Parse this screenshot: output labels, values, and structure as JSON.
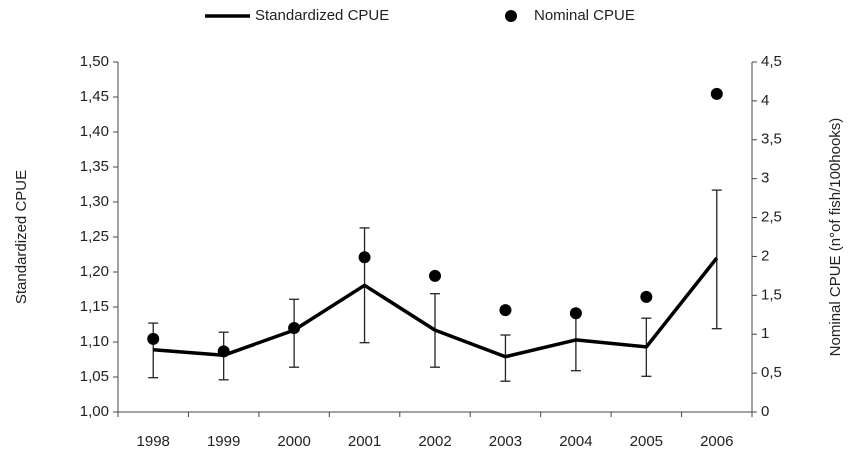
{
  "chart_data": {
    "type": "line",
    "categories": [
      "1998",
      "1999",
      "2000",
      "2001",
      "2002",
      "2003",
      "2004",
      "2005",
      "2006"
    ],
    "series": [
      {
        "name": "Standardized CPUE",
        "color": "#000000",
        "values": [
          1.089,
          1.081,
          1.117,
          1.181,
          1.117,
          1.079,
          1.103,
          1.093,
          1.22
        ],
        "lower": [
          1.049,
          1.046,
          1.064,
          1.099,
          1.064,
          1.044,
          1.059,
          1.051,
          1.119
        ],
        "upper": [
          1.127,
          1.114,
          1.161,
          1.263,
          1.169,
          1.11,
          1.144,
          1.134,
          1.317
        ]
      },
      {
        "name": "Nominal CPUE",
        "color": "#000000",
        "axis": "y2",
        "values": [
          0.94,
          0.78,
          1.08,
          1.99,
          1.75,
          1.31,
          1.27,
          1.48,
          4.09
        ]
      }
    ],
    "ylabel": "Standardized CPUE",
    "y2label": "Nominal CPUE (n°of fish/100hooks)",
    "ylim": [
      1.0,
      1.5
    ],
    "yticks": [
      {
        "value": 1.0,
        "label": "1,00"
      },
      {
        "value": 1.05,
        "label": "1,05"
      },
      {
        "value": 1.1,
        "label": "1,10"
      },
      {
        "value": 1.15,
        "label": "1,15"
      },
      {
        "value": 1.2,
        "label": "1,20"
      },
      {
        "value": 1.25,
        "label": "1,25"
      },
      {
        "value": 1.3,
        "label": "1,30"
      },
      {
        "value": 1.35,
        "label": "1,35"
      },
      {
        "value": 1.4,
        "label": "1,40"
      },
      {
        "value": 1.45,
        "label": "1,45"
      },
      {
        "value": 1.5,
        "label": "1,50"
      }
    ],
    "y2lim": [
      0,
      4.5
    ],
    "y2ticks": [
      0,
      {
        "value": 0.5,
        "label": "0,5"
      },
      1,
      {
        "value": 1.5,
        "label": "1,5"
      },
      2,
      {
        "value": 2.5,
        "label": "2,5"
      },
      3,
      {
        "value": 3.5,
        "label": "3,5"
      },
      4,
      {
        "value": 4.5,
        "label": "4,5"
      }
    ],
    "legend": "top"
  }
}
